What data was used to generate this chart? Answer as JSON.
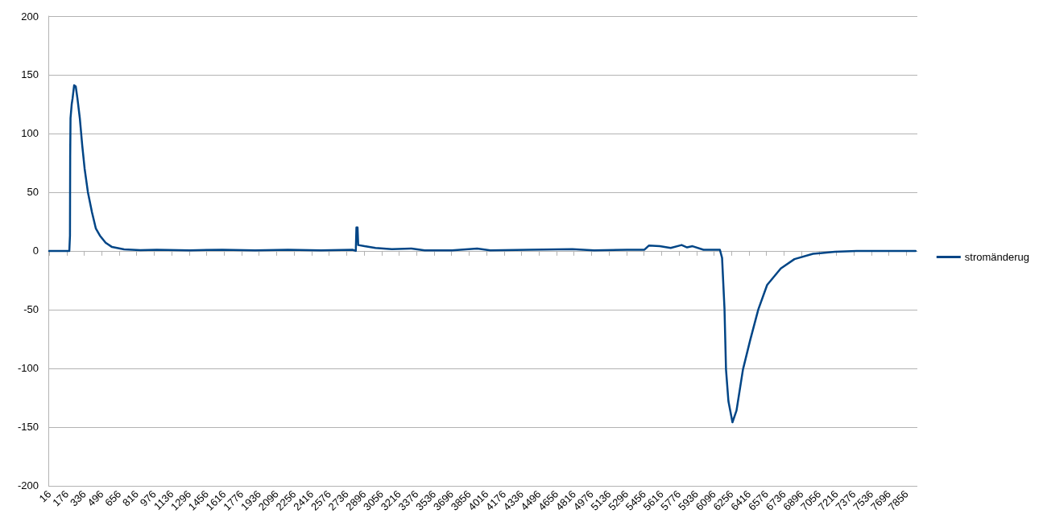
{
  "chart_data": {
    "type": "line",
    "x": [
      16,
      200,
      206,
      208,
      211,
      222,
      230,
      244,
      259,
      274,
      296,
      318,
      340,
      370,
      407,
      443,
      480,
      532,
      591,
      701,
      849,
      1000,
      1300,
      1600,
      1900,
      2200,
      2500,
      2790,
      2820,
      2826,
      2836,
      2842,
      2900,
      3000,
      3150,
      3330,
      3450,
      3700,
      3930,
      4050,
      4400,
      4800,
      5000,
      5300,
      5460,
      5500,
      5600,
      5700,
      5800,
      5850,
      5900,
      6000,
      6150,
      6170,
      6192,
      6206,
      6228,
      6265,
      6302,
      6361,
      6427,
      6501,
      6582,
      6707,
      6832,
      7002,
      7201,
      7400,
      7940
    ],
    "series": [
      {
        "name": "stromänderug",
        "color": "#004586",
        "values": [
          0,
          0,
          13,
          80,
          113,
          125,
          130,
          141,
          140,
          130,
          113,
          90,
          70,
          50,
          33,
          19,
          13,
          7,
          3.3,
          1.3,
          0.7,
          1,
          0.5,
          1,
          0.5,
          1,
          0.5,
          1,
          0,
          20,
          20,
          5,
          4,
          2.5,
          1.5,
          2,
          0.5,
          0.5,
          2,
          0.5,
          1,
          1.5,
          0.5,
          1,
          1,
          4.5,
          4,
          2.5,
          5,
          3,
          4,
          1,
          1,
          -6,
          -49,
          -101,
          -128,
          -146,
          -136,
          -101,
          -76,
          -50,
          -29,
          -15,
          -7,
          -2.5,
          -0.7,
          0,
          0
        ]
      }
    ],
    "xlim": [
      8,
      7956
    ],
    "xticks": [
      16,
      176,
      336,
      496,
      656,
      816,
      976,
      1136,
      1296,
      1456,
      1616,
      1776,
      1936,
      2096,
      2256,
      2416,
      2576,
      2736,
      2896,
      3056,
      3216,
      3376,
      3536,
      3696,
      3856,
      4016,
      4176,
      4336,
      4496,
      4656,
      4816,
      4976,
      5136,
      5296,
      5456,
      5616,
      5776,
      5936,
      6096,
      6256,
      6416,
      6576,
      6736,
      6896,
      7056,
      7216,
      7376,
      7536,
      7696,
      7856
    ],
    "ylim": [
      -200,
      200
    ],
    "yticks": [
      -200,
      -150,
      -100,
      -50,
      0,
      50,
      100,
      150,
      200
    ],
    "grid": "y",
    "legend": "right",
    "marker": "none",
    "line_style": "solid"
  }
}
